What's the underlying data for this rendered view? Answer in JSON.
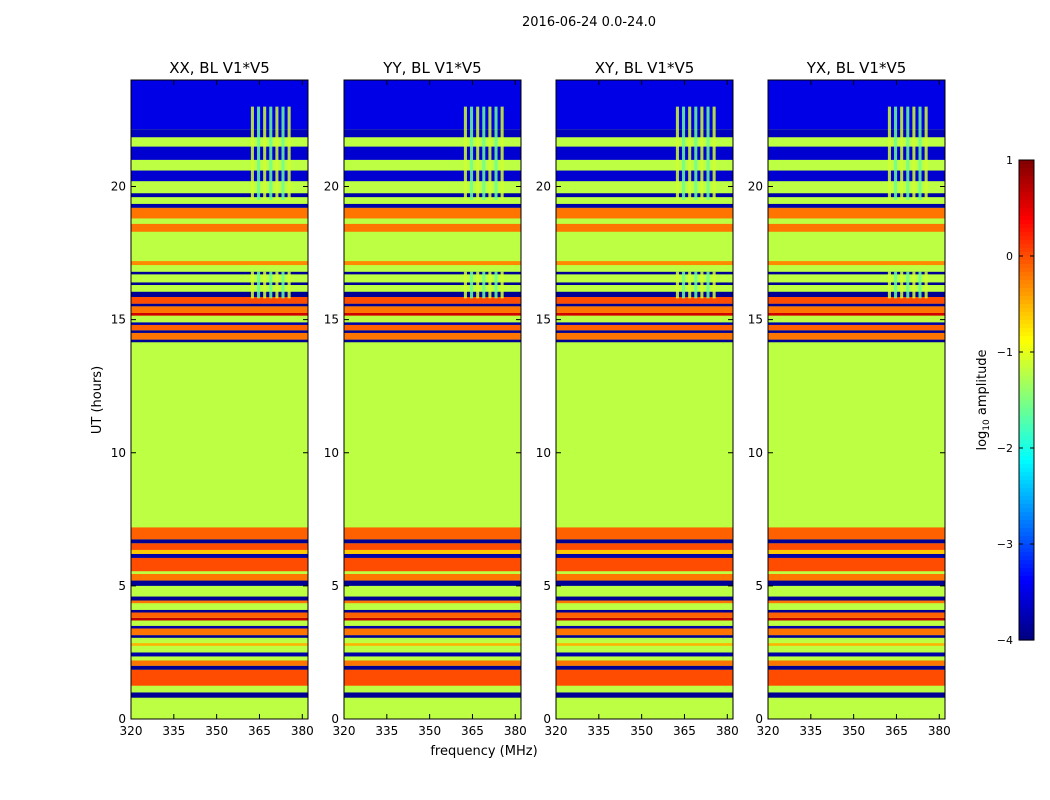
{
  "chart_data": {
    "type": "heatmap",
    "suptitle": "2016-06-24 0.0-24.0",
    "panels": [
      {
        "title": "XX, BL V1*V5"
      },
      {
        "title": "YY, BL V1*V5"
      },
      {
        "title": "XY, BL V1*V5"
      },
      {
        "title": "YX, BL V1*V5"
      }
    ],
    "xlabel": "frequency (MHz)",
    "ylabel": "UT (hours)",
    "xlim": [
      320,
      382
    ],
    "ylim": [
      0,
      24
    ],
    "xticks": [
      320,
      335,
      350,
      365,
      380
    ],
    "yticks": [
      0,
      5,
      10,
      15,
      20
    ],
    "colorbar": {
      "label_prefix": "log",
      "label_sub": "10",
      "label_suffix": " amplitude",
      "range": [
        -4,
        1
      ],
      "ticks": [
        -4,
        -3,
        -2,
        -1,
        0,
        1
      ],
      "colormap": "jet"
    },
    "bands": [
      {
        "from": 0,
        "to": 0.8,
        "value": -1.2
      },
      {
        "from": 0.8,
        "to": 1.0,
        "value": -3.9
      },
      {
        "from": 1.0,
        "to": 1.25,
        "value": -1.2
      },
      {
        "from": 1.25,
        "to": 1.85,
        "value": 0.0
      },
      {
        "from": 1.85,
        "to": 2.0,
        "value": -3.9
      },
      {
        "from": 2.0,
        "to": 2.2,
        "value": -0.2
      },
      {
        "from": 2.2,
        "to": 2.35,
        "value": -1.2
      },
      {
        "from": 2.35,
        "to": 2.5,
        "value": -3.8
      },
      {
        "from": 2.5,
        "to": 2.75,
        "value": -1.2
      },
      {
        "from": 2.75,
        "to": 2.85,
        "value": -0.5
      },
      {
        "from": 2.85,
        "to": 3.05,
        "value": -1.2
      },
      {
        "from": 3.05,
        "to": 3.15,
        "value": -3.9
      },
      {
        "from": 3.15,
        "to": 3.4,
        "value": -0.2
      },
      {
        "from": 3.4,
        "to": 3.5,
        "value": -3.8
      },
      {
        "from": 3.5,
        "to": 3.7,
        "value": -1.2
      },
      {
        "from": 3.7,
        "to": 3.8,
        "value": 0.7
      },
      {
        "from": 3.8,
        "to": 4.0,
        "value": -0.1
      },
      {
        "from": 4.0,
        "to": 4.1,
        "value": -3.9
      },
      {
        "from": 4.1,
        "to": 4.35,
        "value": -1.2
      },
      {
        "from": 4.35,
        "to": 4.45,
        "value": -0.2
      },
      {
        "from": 4.45,
        "to": 4.6,
        "value": -3.9
      },
      {
        "from": 4.6,
        "to": 5.0,
        "value": -1.2
      },
      {
        "from": 5.0,
        "to": 5.2,
        "value": -3.9
      },
      {
        "from": 5.2,
        "to": 5.45,
        "value": -0.2
      },
      {
        "from": 5.45,
        "to": 5.55,
        "value": -1.2
      },
      {
        "from": 5.55,
        "to": 6.05,
        "value": 0.0
      },
      {
        "from": 6.05,
        "to": 6.2,
        "value": -3.8
      },
      {
        "from": 6.2,
        "to": 6.35,
        "value": -0.6
      },
      {
        "from": 6.35,
        "to": 6.6,
        "value": 0.0
      },
      {
        "from": 6.6,
        "to": 6.75,
        "value": -3.9
      },
      {
        "from": 6.75,
        "to": 7.2,
        "value": -0.1
      },
      {
        "from": 7.2,
        "to": 14.15,
        "value": -1.2
      },
      {
        "from": 14.15,
        "to": 14.25,
        "value": -3.9
      },
      {
        "from": 14.25,
        "to": 14.5,
        "value": -0.2
      },
      {
        "from": 14.5,
        "to": 14.6,
        "value": -3.9
      },
      {
        "from": 14.6,
        "to": 14.8,
        "value": -0.1
      },
      {
        "from": 14.8,
        "to": 14.9,
        "value": -3.8
      },
      {
        "from": 14.9,
        "to": 15.15,
        "value": -1.2
      },
      {
        "from": 15.15,
        "to": 15.25,
        "value": 0.6
      },
      {
        "from": 15.25,
        "to": 15.5,
        "value": -0.2
      },
      {
        "from": 15.5,
        "to": 15.6,
        "value": -3.9
      },
      {
        "from": 15.6,
        "to": 15.85,
        "value": 0.0
      },
      {
        "from": 15.85,
        "to": 16.05,
        "value": -3.9
      },
      {
        "from": 16.05,
        "to": 16.3,
        "value": -1.2
      },
      {
        "from": 16.3,
        "to": 16.4,
        "value": -3.9
      },
      {
        "from": 16.4,
        "to": 16.7,
        "value": -1.2
      },
      {
        "from": 16.7,
        "to": 16.8,
        "value": -3.9
      },
      {
        "from": 16.8,
        "to": 17.05,
        "value": -1.2
      },
      {
        "from": 17.05,
        "to": 17.2,
        "value": -0.3
      },
      {
        "from": 17.2,
        "to": 17.3,
        "value": -1.2
      },
      {
        "from": 17.3,
        "to": 18.3,
        "value": -1.2
      },
      {
        "from": 18.3,
        "to": 18.6,
        "value": -0.2
      },
      {
        "from": 18.6,
        "to": 18.8,
        "value": -1.2
      },
      {
        "from": 18.8,
        "to": 19.2,
        "value": -0.2
      },
      {
        "from": 19.2,
        "to": 19.35,
        "value": -3.8
      },
      {
        "from": 19.35,
        "to": 19.6,
        "value": -1.2
      },
      {
        "from": 19.6,
        "to": 19.75,
        "value": -3.8
      },
      {
        "from": 19.75,
        "to": 20.2,
        "value": -1.2
      },
      {
        "from": 20.2,
        "to": 20.6,
        "value": -3.6
      },
      {
        "from": 20.6,
        "to": 21.0,
        "value": -1.2
      },
      {
        "from": 21.0,
        "to": 21.5,
        "value": -3.6
      },
      {
        "from": 21.5,
        "to": 21.85,
        "value": -1.2
      },
      {
        "from": 21.85,
        "to": 22.15,
        "value": -3.7
      },
      {
        "from": 22.15,
        "to": 24.0,
        "value": -3.5
      }
    ],
    "rfi_band_mhz": [
      362,
      377
    ],
    "rfi_regions_hours": [
      [
        15.8,
        16.8
      ],
      [
        19.5,
        23.0
      ]
    ]
  }
}
